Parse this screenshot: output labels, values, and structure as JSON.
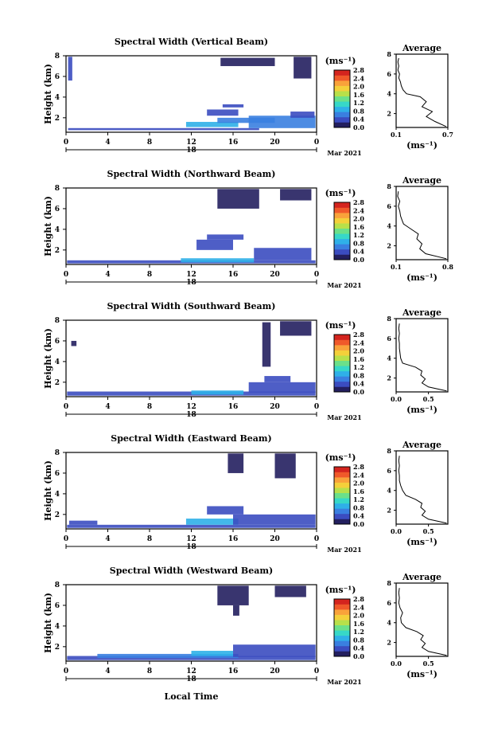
{
  "figure": {
    "xlabel": "Local Time",
    "date_label": "Mar 2021",
    "colorbar_unit": "(ms⁻¹)",
    "colorbar_ticks": [
      "0.0",
      "0.4",
      "0.8",
      "1.2",
      "1.6",
      "2.0",
      "2.4",
      "2.8"
    ],
    "colorbar_colors": [
      "#231f5f",
      "#3b4cc0",
      "#3a7fe0",
      "#2fb0e8",
      "#37d8c8",
      "#6be08a",
      "#b8e04a",
      "#f4d03a",
      "#f9a23a",
      "#f0592a",
      "#d4241e"
    ],
    "x_ticks": [
      "0",
      "4",
      "8",
      "12",
      "16",
      "20",
      "0"
    ],
    "date_tick": "18",
    "profile_title": "Average",
    "profile_unit": "(ms⁻¹)"
  },
  "chart_data": [
    {
      "type": "heatmap",
      "title": "Spectral Width (Vertical Beam)",
      "xlabel": "Local Time",
      "ylabel": "Height (km)",
      "xlim": [
        0,
        24
      ],
      "ylim": [
        0.6,
        8
      ],
      "yticks": [
        "2",
        "4",
        "6",
        "8"
      ],
      "cells": [
        {
          "t0": 0.2,
          "t1": 18.5,
          "h0": 0.8,
          "h1": 1.0,
          "v": 0.3
        },
        {
          "t0": 11.5,
          "t1": 16.5,
          "h0": 1.1,
          "h1": 1.6,
          "v": 0.9
        },
        {
          "t0": 14.5,
          "t1": 20.0,
          "h0": 1.5,
          "h1": 2.0,
          "v": 0.5
        },
        {
          "t0": 17.5,
          "t1": 23.9,
          "h0": 1.0,
          "h1": 2.2,
          "v": 0.6
        },
        {
          "t0": 13.5,
          "t1": 16.5,
          "h0": 2.2,
          "h1": 2.8,
          "v": 0.2
        },
        {
          "t0": 21.5,
          "t1": 23.8,
          "h0": 2.0,
          "h1": 2.6,
          "v": 0.25
        },
        {
          "t0": 15.0,
          "t1": 17.0,
          "h0": 3.0,
          "h1": 3.3,
          "v": 0.15
        },
        {
          "t0": 0.2,
          "t1": 0.6,
          "h0": 5.6,
          "h1": 7.9,
          "v": 0.15
        },
        {
          "t0": 14.8,
          "t1": 20.0,
          "h0": 7.0,
          "h1": 7.8,
          "v": 0.12
        },
        {
          "t0": 21.8,
          "t1": 23.5,
          "h0": 5.8,
          "h1": 7.9,
          "v": 0.12
        }
      ],
      "profile": {
        "xlim": [
          0.1,
          0.7
        ],
        "xticks": [
          "0.1",
          "0.7"
        ],
        "yticks": [
          "2",
          "4",
          "6",
          "8"
        ],
        "ylim": [
          0.6,
          8
        ],
        "height": [
          0.7,
          1.2,
          1.7,
          2.2,
          2.7,
          3.2,
          3.7,
          4.0,
          4.4,
          4.8,
          5.2,
          5.6,
          6.0,
          6.4,
          6.8,
          7.2,
          7.6
        ],
        "value": [
          0.68,
          0.55,
          0.45,
          0.52,
          0.4,
          0.45,
          0.38,
          0.22,
          0.18,
          0.16,
          0.15,
          0.13,
          0.14,
          0.12,
          0.13,
          0.12,
          0.13
        ]
      }
    },
    {
      "type": "heatmap",
      "title": "Spectral Width (Northward Beam)",
      "xlabel": "Local Time",
      "ylabel": "Height (km)",
      "xlim": [
        0,
        24
      ],
      "ylim": [
        0.6,
        8
      ],
      "yticks": [
        "2",
        "4",
        "6",
        "8"
      ],
      "cells": [
        {
          "t0": 0.1,
          "t1": 23.9,
          "h0": 0.7,
          "h1": 1.0,
          "v": 0.35
        },
        {
          "t0": 11.0,
          "t1": 18.0,
          "h0": 0.8,
          "h1": 1.2,
          "v": 0.9
        },
        {
          "t0": 12.5,
          "t1": 16.0,
          "h0": 2.0,
          "h1": 3.0,
          "v": 0.15
        },
        {
          "t0": 18.0,
          "t1": 23.5,
          "h0": 1.0,
          "h1": 2.2,
          "v": 0.15
        },
        {
          "t0": 14.5,
          "t1": 18.5,
          "h0": 6.0,
          "h1": 7.9,
          "v": 0.12
        },
        {
          "t0": 20.5,
          "t1": 23.5,
          "h0": 6.8,
          "h1": 7.9,
          "v": 0.12
        },
        {
          "t0": 13.5,
          "t1": 17.0,
          "h0": 3.0,
          "h1": 3.5,
          "v": 0.15
        }
      ],
      "profile": {
        "xlim": [
          0.1,
          0.8
        ],
        "xticks": [
          "0.1",
          "0.8"
        ],
        "yticks": [
          "2",
          "4",
          "6",
          "8"
        ],
        "ylim": [
          0.6,
          8
        ],
        "height": [
          0.7,
          1.2,
          1.7,
          2.2,
          2.7,
          3.2,
          3.7,
          4.2,
          4.6,
          5.0,
          5.5,
          6.0,
          6.5,
          7.0,
          7.5
        ],
        "value": [
          0.78,
          0.5,
          0.42,
          0.45,
          0.38,
          0.4,
          0.3,
          0.2,
          0.18,
          0.16,
          0.15,
          0.13,
          0.15,
          0.12,
          0.13
        ]
      }
    },
    {
      "type": "heatmap",
      "title": "Spectral Width (Southward Beam)",
      "xlabel": "Local Time",
      "ylabel": "Height (km)",
      "xlim": [
        0,
        24
      ],
      "ylim": [
        0.6,
        8
      ],
      "yticks": [
        "2",
        "4",
        "6",
        "8"
      ],
      "cells": [
        {
          "t0": 0.1,
          "t1": 23.9,
          "h0": 0.7,
          "h1": 1.1,
          "v": 0.15
        },
        {
          "t0": 12.0,
          "t1": 17.0,
          "h0": 0.8,
          "h1": 1.2,
          "v": 0.9
        },
        {
          "t0": 17.5,
          "t1": 23.9,
          "h0": 1.0,
          "h1": 2.0,
          "v": 0.15
        },
        {
          "t0": 19.0,
          "t1": 21.5,
          "h0": 2.0,
          "h1": 2.6,
          "v": 0.15
        },
        {
          "t0": 18.8,
          "t1": 19.6,
          "h0": 3.5,
          "h1": 7.8,
          "v": 0.12
        },
        {
          "t0": 20.5,
          "t1": 23.5,
          "h0": 6.5,
          "h1": 7.9,
          "v": 0.12
        },
        {
          "t0": 0.5,
          "t1": 1.0,
          "h0": 5.5,
          "h1": 6.0,
          "v": 0.12
        }
      ],
      "profile": {
        "xlim": [
          0.0,
          0.8
        ],
        "xticks": [
          "0.0",
          "0.5"
        ],
        "yticks": [
          "2",
          "4",
          "6",
          "8"
        ],
        "ylim": [
          0.6,
          8
        ],
        "height": [
          0.7,
          1.1,
          1.5,
          1.9,
          2.3,
          2.7,
          3.1,
          3.5,
          4.0,
          4.5,
          5.0,
          5.5,
          6.0,
          6.5,
          7.0,
          7.5
        ],
        "value": [
          0.78,
          0.5,
          0.4,
          0.45,
          0.38,
          0.4,
          0.3,
          0.1,
          0.07,
          0.06,
          0.05,
          0.05,
          0.04,
          0.05,
          0.04,
          0.05
        ]
      }
    },
    {
      "type": "heatmap",
      "title": "Spectral Width (Eastward Beam)",
      "xlabel": "Local Time",
      "ylabel": "Height (km)",
      "xlim": [
        0,
        24
      ],
      "ylim": [
        0.6,
        8
      ],
      "yticks": [
        "2",
        "4",
        "6",
        "8"
      ],
      "cells": [
        {
          "t0": 0.1,
          "t1": 23.9,
          "h0": 0.7,
          "h1": 1.0,
          "v": 0.15
        },
        {
          "t0": 0.3,
          "t1": 3.0,
          "h0": 1.0,
          "h1": 1.4,
          "v": 0.2
        },
        {
          "t0": 11.5,
          "t1": 16.5,
          "h0": 1.0,
          "h1": 1.6,
          "v": 0.9
        },
        {
          "t0": 16.0,
          "t1": 23.9,
          "h0": 1.0,
          "h1": 2.0,
          "v": 0.15
        },
        {
          "t0": 13.5,
          "t1": 17.0,
          "h0": 2.0,
          "h1": 2.8,
          "v": 0.2
        },
        {
          "t0": 15.5,
          "t1": 17.0,
          "h0": 6.0,
          "h1": 7.9,
          "v": 0.12
        },
        {
          "t0": 20.0,
          "t1": 22.0,
          "h0": 5.5,
          "h1": 7.9,
          "v": 0.12
        }
      ],
      "profile": {
        "xlim": [
          0.0,
          0.8
        ],
        "xticks": [
          "0.0",
          "0.5"
        ],
        "yticks": [
          "2",
          "4",
          "6",
          "8"
        ],
        "ylim": [
          0.6,
          8
        ],
        "height": [
          0.7,
          1.1,
          1.5,
          1.9,
          2.3,
          2.7,
          3.1,
          3.5,
          4.0,
          4.5,
          5.0,
          5.5,
          6.0,
          6.5,
          7.0,
          7.5
        ],
        "value": [
          0.78,
          0.5,
          0.4,
          0.45,
          0.38,
          0.4,
          0.3,
          0.15,
          0.1,
          0.07,
          0.05,
          0.05,
          0.04,
          0.05,
          0.04,
          0.05
        ]
      }
    },
    {
      "type": "heatmap",
      "title": "Spectral Width (Westward Beam)",
      "xlabel": "Local Time",
      "ylabel": "Height (km)",
      "xlim": [
        0,
        24
      ],
      "ylim": [
        0.6,
        8
      ],
      "yticks": [
        "2",
        "4",
        "6",
        "8"
      ],
      "cells": [
        {
          "t0": 0.1,
          "t1": 23.9,
          "h0": 0.7,
          "h1": 1.1,
          "v": 0.15
        },
        {
          "t0": 3.0,
          "t1": 16.5,
          "h0": 0.9,
          "h1": 1.3,
          "v": 0.6
        },
        {
          "t0": 12.0,
          "t1": 16.0,
          "h0": 1.1,
          "h1": 1.6,
          "v": 0.9
        },
        {
          "t0": 16.0,
          "t1": 23.9,
          "h0": 1.0,
          "h1": 2.2,
          "v": 0.15
        },
        {
          "t0": 14.5,
          "t1": 17.5,
          "h0": 6.0,
          "h1": 7.9,
          "v": 0.12
        },
        {
          "t0": 20.0,
          "t1": 23.0,
          "h0": 6.8,
          "h1": 7.9,
          "v": 0.12
        },
        {
          "t0": 16.0,
          "t1": 16.6,
          "h0": 5.0,
          "h1": 6.0,
          "v": 0.12
        }
      ],
      "profile": {
        "xlim": [
          0.0,
          0.8
        ],
        "xticks": [
          "0.0",
          "0.5"
        ],
        "yticks": [
          "2",
          "4",
          "6",
          "8"
        ],
        "ylim": [
          0.6,
          8
        ],
        "height": [
          0.7,
          1.1,
          1.5,
          1.9,
          2.3,
          2.7,
          3.1,
          3.5,
          4.0,
          4.5,
          5.0,
          5.5,
          6.0,
          6.5,
          7.0,
          7.5
        ],
        "value": [
          0.78,
          0.5,
          0.4,
          0.45,
          0.38,
          0.42,
          0.32,
          0.15,
          0.08,
          0.07,
          0.1,
          0.06,
          0.04,
          0.05,
          0.04,
          0.05
        ]
      }
    }
  ]
}
